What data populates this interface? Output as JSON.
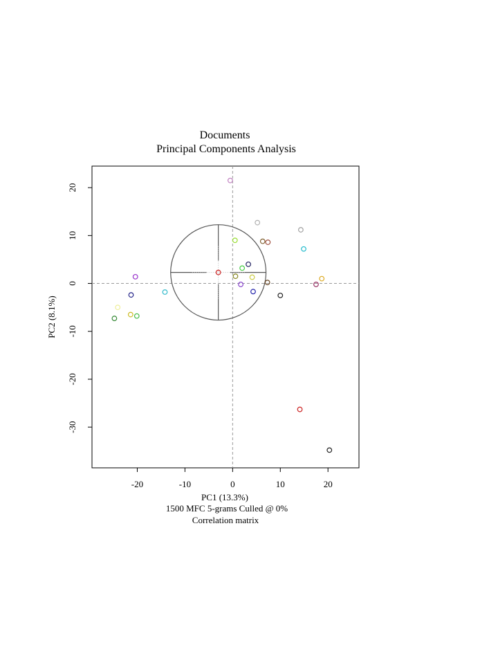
{
  "chart_data": {
    "type": "scatter",
    "title": "Documents",
    "subtitle": "Principal Components Analysis",
    "xlabel": "PC1 (13.3%)",
    "ylabel": "PC2 (8.1%)",
    "captions": [
      "1500 MFC 5-grams Culled @ 0%",
      "Correlation matrix"
    ],
    "xlim": [
      -29.5,
      26.5
    ],
    "ylim": [
      -38.5,
      24.5
    ],
    "xticks": [
      -20,
      -10,
      0,
      10,
      20
    ],
    "yticks": [
      20,
      10,
      0,
      -10,
      -20,
      -30
    ],
    "reference_lines": {
      "x": 0,
      "y": 0
    },
    "grid": false,
    "points": [
      {
        "x": -0.5,
        "y": 21.5,
        "color": "#c080c0"
      },
      {
        "x": 5.2,
        "y": 12.7,
        "color": "#b0b0b0"
      },
      {
        "x": 14.3,
        "y": 11.2,
        "color": "#a0a0a0"
      },
      {
        "x": 0.5,
        "y": 9.0,
        "color": "#99dd33"
      },
      {
        "x": 6.3,
        "y": 8.8,
        "color": "#806030"
      },
      {
        "x": 7.4,
        "y": 8.6,
        "color": "#a05040"
      },
      {
        "x": 14.9,
        "y": 7.2,
        "color": "#22bbcc"
      },
      {
        "x": 3.3,
        "y": 4.0,
        "color": "#202060"
      },
      {
        "x": 2.0,
        "y": 3.2,
        "color": "#44cc44"
      },
      {
        "x": -3.0,
        "y": 2.3,
        "color": "#cc2222"
      },
      {
        "x": 0.6,
        "y": 1.5,
        "color": "#888822"
      },
      {
        "x": 4.1,
        "y": 1.3,
        "color": "#cccc44"
      },
      {
        "x": -20.4,
        "y": 1.4,
        "color": "#9933cc"
      },
      {
        "x": 7.3,
        "y": 0.2,
        "color": "#664422"
      },
      {
        "x": 1.7,
        "y": -0.2,
        "color": "#8844cc"
      },
      {
        "x": 17.5,
        "y": -0.2,
        "color": "#993366"
      },
      {
        "x": 18.7,
        "y": 1.0,
        "color": "#ddaa22"
      },
      {
        "x": 4.3,
        "y": -1.7,
        "color": "#2222aa"
      },
      {
        "x": 10.0,
        "y": -2.5,
        "color": "#222222"
      },
      {
        "x": -14.2,
        "y": -1.8,
        "color": "#33bbcc"
      },
      {
        "x": -21.3,
        "y": -2.4,
        "color": "#222288"
      },
      {
        "x": -24.1,
        "y": -5.0,
        "color": "#eeee99"
      },
      {
        "x": -21.4,
        "y": -6.5,
        "color": "#ccbb22"
      },
      {
        "x": -20.1,
        "y": -6.8,
        "color": "#44bb44"
      },
      {
        "x": -24.8,
        "y": -7.3,
        "color": "#338833"
      },
      {
        "x": 14.1,
        "y": -26.3,
        "color": "#cc2222"
      },
      {
        "x": 20.3,
        "y": -34.8,
        "color": "#222222"
      }
    ],
    "correlation_circle": {
      "center_x": -3.0,
      "center_y": 2.3,
      "radius_x": 10,
      "color": "#555555"
    }
  }
}
